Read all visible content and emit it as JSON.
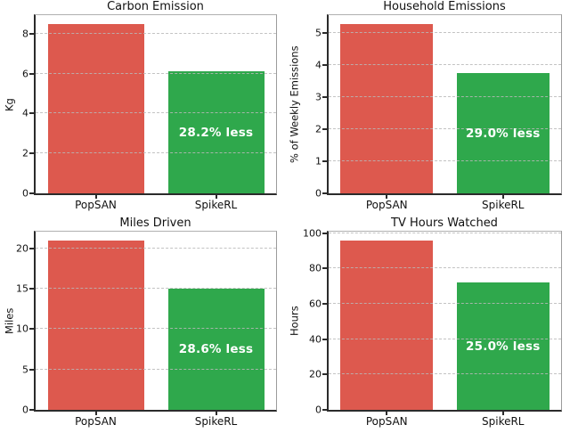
{
  "figure": {
    "background": "#ffffff",
    "description": "2x2 grid of bar charts comparing PopSAN vs SpikeRL energy-impact equivalents"
  },
  "colors": {
    "popsan_red": "#dd594e",
    "spikerl_green": "#2fa84c",
    "grid_gray": "#b9b9b9",
    "spine_dark": "#2b2b2b",
    "spine_light": "#9b9b9b",
    "annotation_text": "#ffffff"
  },
  "chart_data": [
    {
      "type": "bar",
      "title": "Carbon Emission",
      "xlabel": "",
      "ylabel": "Kg",
      "categories": [
        "PopSAN",
        "SpikeRL"
      ],
      "values": [
        8.5,
        6.1
      ],
      "bar_colors": [
        "#dd594e",
        "#2fa84c"
      ],
      "yticks": [
        0,
        2,
        4,
        6,
        8
      ],
      "ylim": [
        0,
        8.93
      ],
      "grid": true,
      "legend_position": "none",
      "annotation": {
        "text": "28.2% less",
        "bar_index": 1
      }
    },
    {
      "type": "bar",
      "title": "Household Emissions",
      "xlabel": "",
      "ylabel": "% of Weekly Emissions",
      "categories": [
        "PopSAN",
        "SpikeRL"
      ],
      "values": [
        5.3,
        3.76
      ],
      "bar_colors": [
        "#dd594e",
        "#2fa84c"
      ],
      "yticks": [
        0,
        1,
        2,
        3,
        4,
        5
      ],
      "ylim": [
        0,
        5.57
      ],
      "grid": true,
      "legend_position": "none",
      "annotation": {
        "text": "29.0% less",
        "bar_index": 1
      }
    },
    {
      "type": "bar",
      "title": "Miles Driven",
      "xlabel": "",
      "ylabel": "Miles",
      "categories": [
        "PopSAN",
        "SpikeRL"
      ],
      "values": [
        21,
        15
      ],
      "bar_colors": [
        "#dd594e",
        "#2fa84c"
      ],
      "yticks": [
        0,
        5,
        10,
        15,
        20
      ],
      "ylim": [
        0,
        22.05
      ],
      "grid": true,
      "legend_position": "none",
      "annotation": {
        "text": "28.6% less",
        "bar_index": 1
      }
    },
    {
      "type": "bar",
      "title": "TV Hours Watched",
      "xlabel": "",
      "ylabel": "Hours",
      "categories": [
        "PopSAN",
        "SpikeRL"
      ],
      "values": [
        96,
        72
      ],
      "bar_colors": [
        "#dd594e",
        "#2fa84c"
      ],
      "yticks": [
        0,
        20,
        40,
        60,
        80,
        100
      ],
      "ylim": [
        0,
        100.8
      ],
      "grid": true,
      "legend_position": "none",
      "annotation": {
        "text": "25.0% less",
        "bar_index": 1
      }
    }
  ]
}
